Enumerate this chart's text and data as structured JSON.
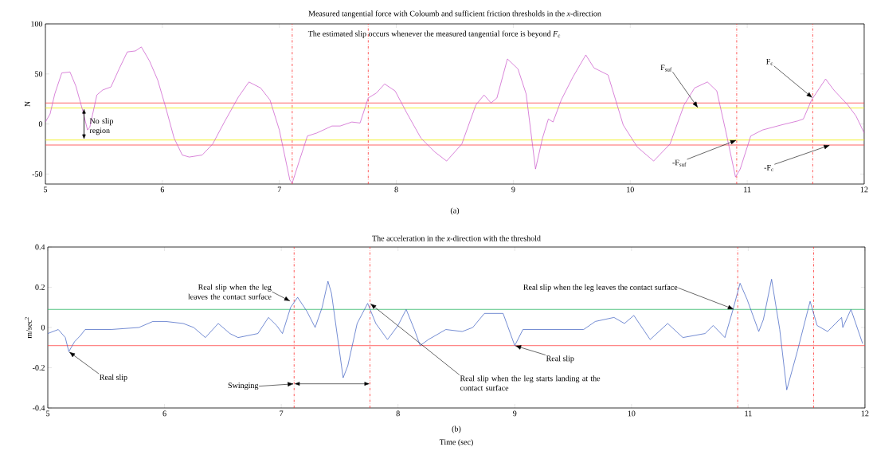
{
  "chart_data": [
    {
      "type": "line",
      "title": "Measured tangential force with Coloumb and sufficient friction thresholds in the *x*-direction",
      "ylabel": "N",
      "color": "#c850c8",
      "x": [
        5.0,
        5.04,
        5.08,
        5.14,
        5.21,
        5.26,
        5.32,
        5.36,
        5.38,
        5.44,
        5.49,
        5.56,
        5.63,
        5.7,
        5.77,
        5.82,
        5.89,
        5.96,
        6.03,
        6.1,
        6.17,
        6.23,
        6.34,
        6.43,
        6.53,
        6.65,
        6.74,
        6.84,
        6.92,
        7.0,
        7.09,
        7.11,
        7.17,
        7.24,
        7.32,
        7.45,
        7.52,
        7.62,
        7.69,
        7.76,
        7.83,
        7.9,
        7.99,
        8.09,
        8.21,
        8.33,
        8.43,
        8.56,
        8.68,
        8.75,
        8.81,
        8.86,
        8.95,
        9.04,
        9.11,
        9.19,
        9.25,
        9.3,
        9.34,
        9.41,
        9.51,
        9.62,
        9.69,
        9.81,
        9.94,
        10.06,
        10.2,
        10.34,
        10.46,
        10.55,
        10.66,
        10.74,
        10.82,
        10.9,
        10.94,
        11.03,
        11.13,
        11.29,
        11.43,
        11.48,
        11.55,
        11.67,
        11.74,
        11.86,
        11.93,
        12.0
      ],
      "values": [
        2,
        10,
        30,
        51,
        52,
        38,
        13,
        -6,
        -3,
        29,
        34,
        37,
        55,
        72,
        73,
        77,
        63,
        44,
        16,
        -14,
        -31,
        -33,
        -31,
        -20,
        2,
        27,
        42,
        36,
        24,
        -6,
        -56,
        -59,
        -37,
        -12,
        -9,
        -2,
        -2,
        2,
        1,
        26,
        31,
        40,
        33,
        11,
        -14,
        -28,
        -37,
        -20,
        19,
        29,
        21,
        26,
        65,
        55,
        30,
        -45,
        -14,
        5,
        2,
        24,
        47,
        69,
        56,
        49,
        -1,
        -23,
        -37,
        -20,
        19,
        36,
        42,
        33,
        -9,
        -53,
        -45,
        -12,
        -6,
        -1,
        3,
        5,
        24,
        45,
        34,
        19,
        8,
        -9
      ],
      "xlim": [
        5,
        12
      ],
      "ylim": [
        -60,
        100
      ],
      "xticks": [
        5,
        6,
        7,
        8,
        9,
        10,
        11,
        12
      ],
      "yticks": [
        -50,
        0,
        50,
        100
      ],
      "ref_lines": [
        {
          "axis": "y",
          "value": 21,
          "color": "#ff4040",
          "line_style": "solid"
        },
        {
          "axis": "y",
          "value": 16,
          "color": "#eeee00",
          "line_style": "solid"
        },
        {
          "axis": "y",
          "value": -16,
          "color": "#eeee00",
          "line_style": "solid"
        },
        {
          "axis": "y",
          "value": -21,
          "color": "#ff4040",
          "line_style": "solid"
        },
        {
          "axis": "x",
          "value": 7.11,
          "color": "#ff3030",
          "line_style": "dashdot"
        },
        {
          "axis": "x",
          "value": 7.76,
          "color": "#ff3030",
          "line_style": "dashdot"
        },
        {
          "axis": "x",
          "value": 10.91,
          "color": "#ff3030",
          "line_style": "dashdot"
        },
        {
          "axis": "x",
          "value": 11.56,
          "color": "#ff3030",
          "line_style": "dashdot"
        }
      ],
      "annotations": [
        "The estimated slip occurs whenever the measured tangential force is beyond *F*$_{c}$",
        "(a)",
        {
          "text": "No slip region",
          "x": 5.33,
          "y": 0
        },
        {
          "text": "F$_{suf}$",
          "x": 10.58,
          "y": 16
        },
        {
          "text": "F$_{c}$",
          "x": 11.56,
          "y": 26
        },
        {
          "text": "-F$_{suf}$",
          "x": 10.91,
          "y": -16
        },
        {
          "text": "-F$_{c}$",
          "x": 11.71,
          "y": -21
        }
      ]
    },
    {
      "type": "line",
      "title": "The acceleration in the *x*-direction with the threshold",
      "ylabel": "m/sec$^{2}$",
      "xlabel": "Time (sec)",
      "color": "#3a5cc0",
      "x": [
        5.0,
        5.09,
        5.15,
        5.18,
        5.23,
        5.28,
        5.32,
        5.54,
        5.78,
        5.9,
        6.01,
        6.16,
        6.25,
        6.35,
        6.46,
        6.56,
        6.63,
        6.8,
        6.89,
        6.96,
        7.01,
        7.08,
        7.14,
        7.22,
        7.29,
        7.35,
        7.4,
        7.43,
        7.53,
        7.57,
        7.65,
        7.74,
        7.81,
        7.91,
        8.0,
        8.07,
        8.14,
        8.19,
        8.26,
        8.41,
        8.55,
        8.64,
        8.74,
        8.9,
        9.0,
        9.07,
        9.17,
        9.59,
        9.69,
        9.85,
        9.94,
        10.02,
        10.16,
        10.31,
        10.44,
        10.63,
        10.7,
        10.8,
        10.87,
        10.93,
        10.99,
        11.09,
        11.13,
        11.2,
        11.27,
        11.33,
        11.42,
        11.53,
        11.59,
        11.68,
        11.8,
        11.81,
        11.88,
        11.98
      ],
      "values": [
        -0.03,
        -0.01,
        -0.05,
        -0.12,
        -0.07,
        -0.04,
        -0.01,
        -0.01,
        0,
        0.03,
        0.03,
        0.02,
        0,
        -0.05,
        0.02,
        -0.03,
        -0.05,
        -0.03,
        0.05,
        0.01,
        -0.03,
        0.1,
        0.15,
        0.08,
        0,
        0.1,
        0.23,
        0.17,
        -0.25,
        -0.19,
        0.02,
        0.12,
        0.02,
        -0.06,
        0.01,
        0.09,
        -0.01,
        -0.09,
        -0.06,
        -0.01,
        -0.02,
        0,
        0.07,
        0.07,
        -0.09,
        -0.01,
        -0.01,
        -0.01,
        0.03,
        0.05,
        0.02,
        0.06,
        -0.06,
        0.02,
        -0.05,
        -0.03,
        0.01,
        -0.05,
        0.09,
        0.22,
        0.14,
        -0.02,
        0.04,
        0.24,
        -0.01,
        -0.31,
        -0.12,
        0.13,
        0.01,
        -0.02,
        0.05,
        0,
        0.09,
        -0.08
      ],
      "xlim": [
        5,
        12
      ],
      "ylim": [
        -0.4,
        0.4
      ],
      "xticks": [
        5,
        6,
        7,
        8,
        9,
        10,
        11,
        12
      ],
      "yticks": [
        -0.4,
        -0.2,
        0,
        0.2,
        0.4
      ],
      "ref_lines": [
        {
          "axis": "y",
          "value": 0.09,
          "color": "#30b868",
          "line_style": "solid"
        },
        {
          "axis": "y",
          "value": -0.09,
          "color": "#ff4040",
          "line_style": "solid"
        },
        {
          "axis": "x",
          "value": 7.11,
          "color": "#ff3030",
          "line_style": "dashdot"
        },
        {
          "axis": "x",
          "value": 7.76,
          "color": "#ff3030",
          "line_style": "dashdot"
        },
        {
          "axis": "x",
          "value": 10.91,
          "color": "#ff3030",
          "line_style": "dashdot"
        },
        {
          "axis": "x",
          "value": 11.56,
          "color": "#ff3030",
          "line_style": "dashdot"
        }
      ],
      "annotations": [
        "(b)",
        {
          "text": "Real slip when the leg leaves the contact surface",
          "x": 7.08,
          "y": 0.13
        },
        {
          "text": "Real slip",
          "x": 5.18,
          "y": -0.12
        },
        {
          "text": "Swinging",
          "x": 7.11,
          "y": -0.28
        },
        {
          "text": "Real slip when the leg starts landing at the contact surface",
          "x": 7.76,
          "y": 0.12
        },
        {
          "text": "Real slip",
          "x": 9.0,
          "y": -0.09
        },
        {
          "text": "Real slip when the leg leaves the contact surface",
          "x": 10.88,
          "y": 0.09
        }
      ]
    }
  ]
}
